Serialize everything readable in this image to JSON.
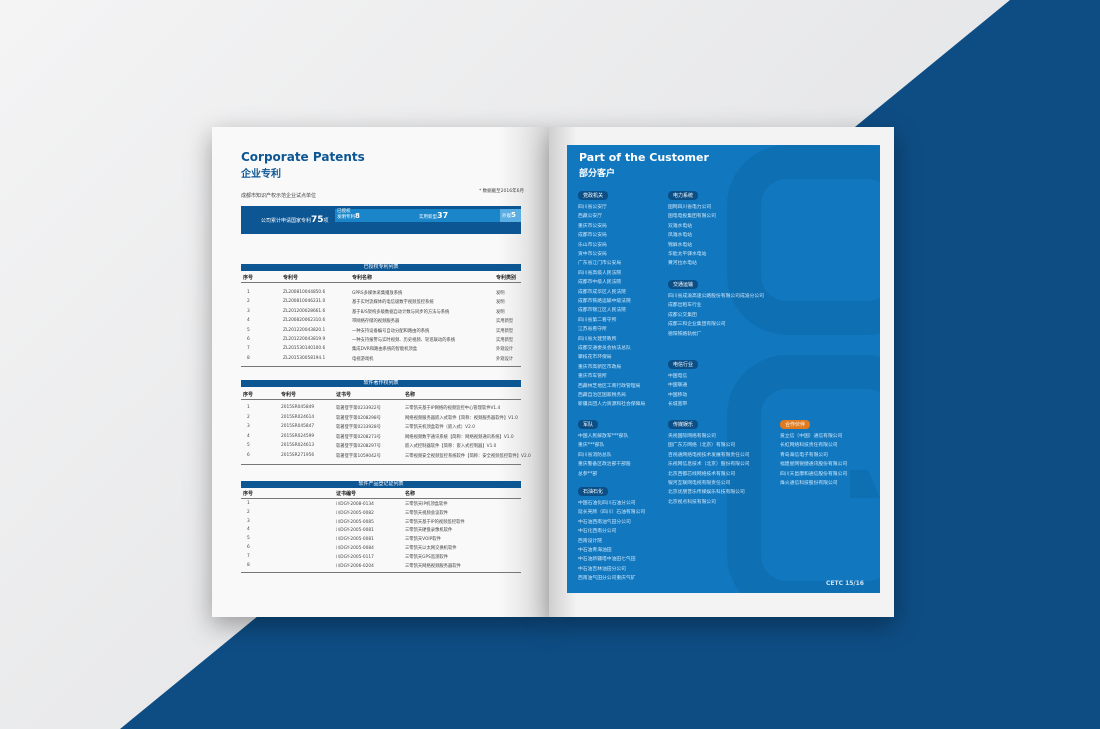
{
  "left": {
    "title_en": "Corporate Patents",
    "title_cn": "企业专利",
    "subtitle": "成都市知识产权示范企业试点单位",
    "note": "* 数据截至2016年6月",
    "stats": {
      "total_label": "公司累计申请国家专利",
      "total": "75",
      "unit": "项",
      "granted_label": "已授权",
      "invention_label": "发明专利",
      "invention": "8",
      "utility_label": "实用新型",
      "utility": "37",
      "design_label": "外观",
      "design": "5"
    },
    "table1": {
      "title": "已授权专利列表",
      "headers": [
        "序号",
        "专利号",
        "专利名称",
        "专利类别"
      ],
      "rows": [
        [
          "1",
          "ZL200810044850.6",
          "GPRS多媒体采集播放系统",
          "发明"
        ],
        [
          "2",
          "ZL200810046231.0",
          "基于实时流媒体的电信级数字视频监控系统",
          "发明"
        ],
        [
          "3",
          "ZL201200028661.6",
          "基于B/S架构多级数据自动计数与同步的方法与系统",
          "发明"
        ],
        [
          "4",
          "ZL200820062310.6",
          "带网络存储的视频服务器",
          "实用新型"
        ],
        [
          "5",
          "ZL201220043820.1",
          "一种支持设备编号自动分配和路由的系统",
          "实用新型"
        ],
        [
          "6",
          "ZL201220043819.9",
          "一种支持报警与实时视频、历史视频、轮巡联动的系统",
          "实用新型"
        ],
        [
          "7",
          "ZL201530140100.6",
          "集成DVR和路由系统的智能机顶盒",
          "外观设计"
        ],
        [
          "8",
          "ZL201530058194.1",
          "电视游戏机",
          "外观设计"
        ]
      ]
    },
    "table2": {
      "title": "软件著作权列表",
      "headers": [
        "序号",
        "专利号",
        "证书号",
        "名称"
      ],
      "rows": [
        [
          "1",
          "2015SR045849",
          "软著登字第0233922号",
          "三零凯天基于IP网络的视频监控中心管理软件V1.4"
        ],
        [
          "2",
          "2015SR024614",
          "软著登字第0208298号",
          "网络视频服务器嵌入式软件【简称：视频服务器软件】V1.0"
        ],
        [
          "3",
          "2015SR045847",
          "软著登字第0233928号",
          "三零凯天机顶盒软件（嵌入式）V2.0"
        ],
        [
          "4",
          "2015SR024599",
          "软著登字第0208273号",
          "网络视频数字通讯系统【简称：网络视频通讯系统】V1.0"
        ],
        [
          "5",
          "2015SR024613",
          "软著登字第0208297号",
          "嵌入式控制器软件【简称：嵌入式控制器】V1.0"
        ],
        [
          "6",
          "2015SR271956",
          "软著登字第1059042号",
          "三零视频安全视频监控系统软件【简称：安全视频监控软件】V2.0"
        ]
      ]
    },
    "table3": {
      "title": "软件产品登记证列表",
      "headers": [
        "序号",
        "证书编号",
        "名称"
      ],
      "rows": [
        [
          "1",
          "川DGY-2008-0134",
          "三零凯天IP机顶盒软件"
        ],
        [
          "2",
          "川DGY-2005-0082",
          "三零凯天视频会议软件"
        ],
        [
          "3",
          "川DGY-2005-0085",
          "三零凯天基于IP的视频监控软件"
        ],
        [
          "4",
          "川DGY-2005-0081",
          "三零凯天硬盘录像机软件"
        ],
        [
          "5",
          "川DGY-2005-0081",
          "三零凯天VOIP软件"
        ],
        [
          "6",
          "川DGY-2005-0084",
          "三零凯天以太网交换机软件"
        ],
        [
          "7",
          "川DGY-2005-0117",
          "三零凯天GPS监测软件"
        ],
        [
          "8",
          "川DGY-2006-0204",
          "三零凯天网络视频服务器软件"
        ]
      ]
    }
  },
  "right": {
    "title_en": "Part of the Customer",
    "title_cn": "部分客户",
    "footer": "CETC 15/16",
    "accent": "#1178c0",
    "partner_color": "#e07a1f",
    "groups": [
      {
        "label": "党政机关",
        "items": [
          "四川省公安厅",
          "西藏公安厅",
          "重庆市公安局",
          "成都市公安局",
          "乐山市公安局",
          "资中市公安局",
          "广东省江门市公安局",
          "四川省高级人民法院",
          "成都市中级人民法院",
          "成都市成华区人民法院",
          "成都市铁路运输中级法院",
          "成都市锦江区人民法院",
          "四川省第二看守所",
          "江苏省看守所",
          "四川省大建劳教所",
          "成都交通委员会执法总队",
          "攀枝花市环保局",
          "重庆市高新区市政局",
          "重庆市车管所",
          "西藏林芝地区工商行政管理局",
          "西藏自治区国家税务局",
          "新疆兵团人力资源和社会保障局"
        ]
      },
      {
        "label": "电力系统",
        "items": [
          "国网四川省电力公司",
          "国电电投集团有限公司",
          "双滩水电站",
          "凤滩水电站",
          "锦屏水电站",
          "华能太平驿水电站",
          "黄河拉水电站"
        ]
      },
      {
        "label": "交通运输",
        "items": [
          "四川省成渝高速公路股份有限公司成渝分公司",
          "成都出租车行业",
          "成都公交集团",
          "成都三和企业集团有限公司",
          "德阳铁路轨枕厂"
        ]
      },
      {
        "label": "电信行业",
        "items": [
          "中国电信",
          "中国联通",
          "中国移动",
          "长城宽带"
        ]
      },
      {
        "label": "军队",
        "items": [
          "中国人民解放军***部队",
          "重庆***部队",
          "四川省消防总队",
          "重庆警备区政治部干部股",
          "总参**部"
        ]
      },
      {
        "label": "石油石化",
        "items": [
          "中国石油化四川石油分公司",
          "延长壳牌（四川）石油有限公司",
          "中石油西南油气田分公司",
          "中石化西南分公司",
          "西南设计院",
          "中石油青海油田",
          "中石油新疆塔中油田七气田",
          "中石油吉林油田分公司",
          "西南油气田分公司重庆气矿"
        ]
      },
      {
        "label": "传媒娱乐",
        "items": [
          "央视国际网络有限公司",
          "国广东方网络（北京）有限公司",
          "百视通网络电视技术发展有限责任公司",
          "乐视网信息技术（北京）股份有限公司",
          "北京西都芯线网络技术有限公司",
          "银河互联网电视有限责任公司",
          "北京优朋普乐传媒娱乐科技有限公司",
          "北京视点科技有限公司"
        ]
      },
      {
        "label": "合作伙伴",
        "items": [
          "爱立信（中国）通信有限公司",
          "长虹网络科技责任有限公司",
          "青岛海信电子有限公司",
          "福建星网锐捷通讯股份有限公司",
          "四川天邑康和通信股份有限公司",
          "烽火通信科技股份有限公司"
        ]
      }
    ]
  }
}
